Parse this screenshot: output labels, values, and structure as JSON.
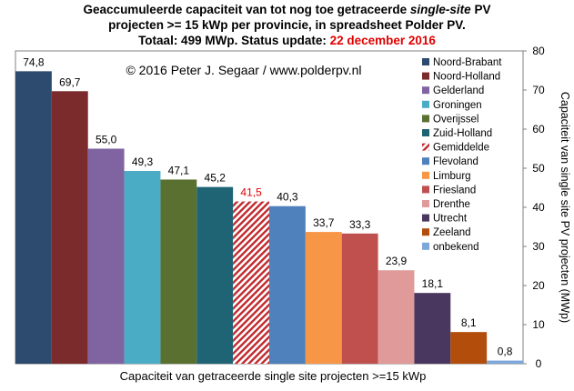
{
  "title": {
    "line1_a": "Geaccumuleerde capaciteit van tot nog toe getraceerde ",
    "line1_b": "single-site",
    "line1_c": " PV",
    "line2": "projecten >= 15 kWp per provincie, in spreadsheet Polder PV.",
    "line3_a": "Totaal: 499 MWp. Status update: ",
    "line3_b": "22 december 2016"
  },
  "copyright": "© 2016 Peter J. Segaar / www.polderpv.nl",
  "chart_data": {
    "type": "bar",
    "categories": [
      "Noord-Brabant",
      "Noord-Holland",
      "Gelderland",
      "Groningen",
      "Overijssel",
      "Zuid-Holland",
      "Gemiddelde",
      "Flevoland",
      "Limburg",
      "Friesland",
      "Drenthe",
      "Utrecht",
      "Zeeland",
      "onbekend"
    ],
    "values": [
      74.8,
      69.7,
      55.0,
      49.3,
      47.1,
      45.2,
      41.5,
      40.3,
      33.7,
      33.3,
      23.9,
      18.1,
      8.1,
      0.8
    ],
    "value_labels": [
      "74,8",
      "69,7",
      "55,0",
      "49,3",
      "47,1",
      "45,2",
      "41,5",
      "40,3",
      "33,7",
      "33,3",
      "23,9",
      "18,1",
      "8,1",
      "0,8"
    ],
    "colors": [
      "#2d4b6e",
      "#7b2b2b",
      "#8064a2",
      "#4bacc6",
      "#5a7030",
      "#1f6474",
      "#c0292d",
      "#4f81bd",
      "#f79646",
      "#c0504d",
      "#e09a9a",
      "#493760",
      "#b24d0b",
      "#7da7d8"
    ],
    "hatched": [
      false,
      false,
      false,
      false,
      false,
      false,
      true,
      false,
      false,
      false,
      false,
      false,
      false,
      false
    ],
    "label_colors": [
      "#000000",
      "#000000",
      "#000000",
      "#000000",
      "#000000",
      "#000000",
      "#e00000",
      "#000000",
      "#000000",
      "#000000",
      "#000000",
      "#000000",
      "#000000",
      "#000000"
    ],
    "xlabel": "Capaciteit van getraceerde single site projecten >=15 kWp",
    "ylabel": "Capaciteit van single site PV projecten (MWp)",
    "ylim": [
      0,
      80
    ],
    "yticks": [
      0,
      10,
      20,
      30,
      40,
      50,
      60,
      70,
      80
    ],
    "legend_position": "top-right",
    "grid": false
  }
}
